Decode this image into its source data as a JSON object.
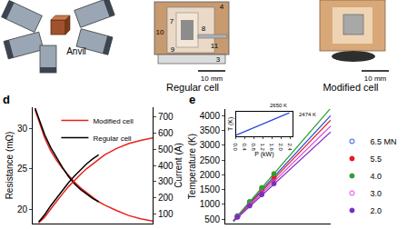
{
  "figure_parts": {
    "anvil": {
      "label": "Anvil"
    },
    "regular_cell": {
      "title": "Regular cell",
      "scale_bar": "10 mm",
      "part_labels": [
        "4",
        "7",
        "8",
        "10",
        "9",
        "11",
        "3"
      ]
    },
    "modified_cell": {
      "title": "Modified cell",
      "scale_bar": "10 mm"
    }
  },
  "chart_data": [
    {
      "panel": "d",
      "type": "line",
      "ylabel": "Resistance (mΩ)",
      "y2label": "Current (A)",
      "x": [
        0.2,
        0.5,
        1,
        1.5,
        2,
        2.5,
        3,
        3.5,
        4,
        4.5,
        5,
        5.5,
        6,
        7,
        8,
        9,
        10
      ],
      "xlim": [
        0,
        10
      ],
      "ylim": [
        18.2,
        32.6
      ],
      "yticks": [
        20,
        25,
        30
      ],
      "y2lim": [
        40,
        760
      ],
      "y2ticks": [
        100,
        200,
        300,
        400,
        500,
        600,
        700
      ],
      "tick_labels": "y",
      "legend": "top left",
      "series": [
        {
          "name": "Modified cell",
          "color": "#e8221b",
          "line_style": "solid",
          "values": [
            32.3,
            31.0,
            28.8,
            27.2,
            26.0,
            25.0,
            24.1,
            23.3,
            22.6,
            22.0,
            21.4,
            20.9,
            20.5,
            19.8,
            19.2,
            18.8,
            18.5
          ]
        },
        {
          "name": "Regular cell",
          "color": "#000000",
          "line_style": "solid",
          "values": [
            32.5,
            31.3,
            29.2,
            27.6,
            26.3,
            25.1,
            24.0,
            23.1,
            22.4,
            21.8,
            21.3,
            20.9,
            null,
            null,
            null,
            null,
            null
          ]
        },
        {
          "name": "Modified cell",
          "color": "#e8221b",
          "line_style": "solid",
          "axis": "y2",
          "values": [
            null,
            45,
            80,
            130,
            180,
            225,
            270,
            310,
            345,
            380,
            410,
            440,
            465,
            505,
            535,
            555,
            570
          ]
        },
        {
          "name": "Regular cell",
          "color": "#000000",
          "line_style": "solid",
          "axis": "y2",
          "values": [
            null,
            50,
            95,
            150,
            200,
            250,
            295,
            335,
            375,
            410,
            440,
            465,
            null,
            null,
            null,
            null,
            null
          ]
        }
      ]
    },
    {
      "panel": "e",
      "type": "scatter",
      "ylabel": "Temperature (K)",
      "x": [
        0.3,
        0.6,
        0.9,
        1.2
      ],
      "fit_x": [
        0.2,
        2.6
      ],
      "xlim": [
        0,
        2.6
      ],
      "ylim": [
        350,
        4220
      ],
      "yticks": [
        500,
        1000,
        1500,
        2000,
        2500,
        3000,
        3500,
        4000
      ],
      "tick_labels": "y",
      "legend": "right",
      "series": [
        {
          "name": "6.5 MN",
          "color": "#2b4bd8",
          "marker": "open circle",
          "values": [
            600,
            1050,
            1480,
            1940
          ],
          "fit": [
            450,
            4000
          ]
        },
        {
          "name": "5.5",
          "color": "#e41a1c",
          "marker": "circle",
          "values": [
            590,
            1020,
            1450,
            1870
          ],
          "fit": [
            440,
            3850
          ]
        },
        {
          "name": "4.0",
          "color": "#2ca02c",
          "marker": "circle",
          "values": [
            610,
            1090,
            1560,
            2030
          ],
          "fit": [
            450,
            4250
          ]
        },
        {
          "name": "3.0",
          "color": "#e040e0",
          "marker": "open circle",
          "values": [
            580,
            980,
            1390,
            1780
          ],
          "fit": [
            430,
            3650
          ]
        },
        {
          "name": "2.0",
          "color": "#7a2fc0",
          "marker": "circle",
          "values": [
            570,
            950,
            1330,
            1700
          ],
          "fit": [
            420,
            3450
          ]
        }
      ],
      "inset": {
        "type": "line",
        "xlabel": "P (kW)",
        "ylabel": "T (K)",
        "color": "#2b4bd8",
        "x": [
          0,
          0.4,
          0.8,
          1.2,
          1.6,
          2.0,
          2.2,
          2.32,
          2.35
        ],
        "values": [
          420,
          800,
          1180,
          1560,
          1940,
          2300,
          2474,
          2560,
          2650
        ],
        "xlim": [
          0,
          2.5
        ],
        "xticks": [
          {
            "value": 0,
            "label": "0.0"
          },
          0.4,
          0.8,
          1.2,
          1.6,
          {
            "value": 2,
            "label": "2.0"
          },
          2.4
        ],
        "ylim": [
          300,
          2800
        ],
        "tick_labels": "x",
        "annotations": [
          {
            "text": "2650 K",
            "x": 2.35,
            "y": 2650
          },
          {
            "text": "2474 K",
            "x": 2.2,
            "y": 2474
          }
        ]
      }
    }
  ]
}
